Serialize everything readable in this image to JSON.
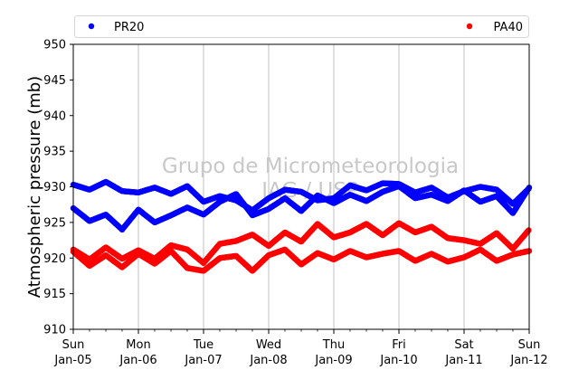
{
  "chart_data": {
    "type": "scatter",
    "title": "",
    "xlabel": "",
    "ylabel": "Atmospheric pressure (mb)",
    "ylim": [
      910,
      950
    ],
    "yticks": [
      910,
      915,
      920,
      925,
      930,
      935,
      940,
      945,
      950
    ],
    "xlim": [
      "Jan-05",
      "Jan-12"
    ],
    "xticks": [
      {
        "day": "Sun",
        "date": "Jan-05"
      },
      {
        "day": "Mon",
        "date": "Jan-06"
      },
      {
        "day": "Tue",
        "date": "Jan-07"
      },
      {
        "day": "Wed",
        "date": "Jan-08"
      },
      {
        "day": "Thu",
        "date": "Jan-09"
      },
      {
        "day": "Fri",
        "date": "Jan-10"
      },
      {
        "day": "Sat",
        "date": "Jan-11"
      },
      {
        "day": "Sun",
        "date": "Jan-12"
      }
    ],
    "grid": "vertical",
    "legend_position": "top",
    "watermark": [
      "Grupo de Micrometeorologia",
      "IAG / USP"
    ],
    "colors": {
      "PR20": "#0000ff",
      "PA40": "#ff0000"
    },
    "series": [
      {
        "name": "PR20",
        "color": "#0000ff",
        "points": [
          [
            0.0,
            930.3
          ],
          [
            0.25,
            929.6
          ],
          [
            0.5,
            930.7
          ],
          [
            0.75,
            929.4
          ],
          [
            1.0,
            929.2
          ],
          [
            1.25,
            929.9
          ],
          [
            1.5,
            929.0
          ],
          [
            1.75,
            930.1
          ],
          [
            2.0,
            927.9
          ],
          [
            2.25,
            928.7
          ],
          [
            2.5,
            928.1
          ],
          [
            2.75,
            926.7
          ],
          [
            3.0,
            928.4
          ],
          [
            3.25,
            929.6
          ],
          [
            3.5,
            929.3
          ],
          [
            3.75,
            928.1
          ],
          [
            4.0,
            928.4
          ],
          [
            4.25,
            930.2
          ],
          [
            4.5,
            929.5
          ],
          [
            4.75,
            930.5
          ],
          [
            5.0,
            930.4
          ],
          [
            5.25,
            929.2
          ],
          [
            5.5,
            929.9
          ],
          [
            5.75,
            928.5
          ],
          [
            6.0,
            929.4
          ],
          [
            6.25,
            930.0
          ],
          [
            6.5,
            929.6
          ],
          [
            6.75,
            927.6
          ],
          [
            7.0,
            929.8
          ],
          [
            0.0,
            927.0
          ],
          [
            0.25,
            925.2
          ],
          [
            0.5,
            926.1
          ],
          [
            0.75,
            924.0
          ],
          [
            1.0,
            926.8
          ],
          [
            1.25,
            925.0
          ],
          [
            1.5,
            926.0
          ],
          [
            1.75,
            927.1
          ],
          [
            2.0,
            926.1
          ],
          [
            2.25,
            927.9
          ],
          [
            2.5,
            929.0
          ],
          [
            2.75,
            926.0
          ],
          [
            3.0,
            926.9
          ],
          [
            3.25,
            928.4
          ],
          [
            3.5,
            926.6
          ],
          [
            3.75,
            928.8
          ],
          [
            4.0,
            927.7
          ],
          [
            4.25,
            928.9
          ],
          [
            4.5,
            928.0
          ],
          [
            4.75,
            929.3
          ],
          [
            5.0,
            930.1
          ],
          [
            5.25,
            928.4
          ],
          [
            5.5,
            928.9
          ],
          [
            5.75,
            928.0
          ],
          [
            6.0,
            929.5
          ],
          [
            6.25,
            927.9
          ],
          [
            6.5,
            928.7
          ],
          [
            6.75,
            926.3
          ],
          [
            7.0,
            929.9
          ]
        ]
      },
      {
        "name": "PA40",
        "color": "#ff0000",
        "points": [
          [
            0.0,
            921.2
          ],
          [
            0.25,
            919.8
          ],
          [
            0.5,
            921.5
          ],
          [
            0.75,
            919.9
          ],
          [
            1.0,
            921.1
          ],
          [
            1.25,
            919.9
          ],
          [
            1.5,
            921.8
          ],
          [
            1.75,
            921.2
          ],
          [
            2.0,
            919.3
          ],
          [
            2.25,
            922.0
          ],
          [
            2.5,
            922.4
          ],
          [
            2.75,
            923.3
          ],
          [
            3.0,
            921.7
          ],
          [
            3.25,
            923.6
          ],
          [
            3.5,
            922.3
          ],
          [
            3.75,
            924.8
          ],
          [
            4.0,
            922.9
          ],
          [
            4.25,
            923.6
          ],
          [
            4.5,
            924.8
          ],
          [
            4.75,
            923.2
          ],
          [
            5.0,
            924.9
          ],
          [
            5.25,
            923.6
          ],
          [
            5.5,
            924.4
          ],
          [
            5.75,
            922.8
          ],
          [
            6.0,
            922.5
          ],
          [
            6.25,
            922.0
          ],
          [
            6.5,
            923.5
          ],
          [
            6.75,
            921.3
          ],
          [
            7.0,
            924.0
          ],
          [
            0.0,
            920.9
          ],
          [
            0.25,
            918.9
          ],
          [
            0.5,
            920.4
          ],
          [
            0.75,
            918.7
          ],
          [
            1.0,
            920.6
          ],
          [
            1.25,
            919.2
          ],
          [
            1.5,
            921.0
          ],
          [
            1.75,
            918.6
          ],
          [
            2.0,
            918.2
          ],
          [
            2.25,
            920.0
          ],
          [
            2.5,
            920.3
          ],
          [
            2.75,
            918.2
          ],
          [
            3.0,
            920.4
          ],
          [
            3.25,
            921.2
          ],
          [
            3.5,
            919.1
          ],
          [
            3.75,
            920.7
          ],
          [
            4.0,
            919.8
          ],
          [
            4.25,
            921.0
          ],
          [
            4.5,
            920.1
          ],
          [
            4.75,
            920.6
          ],
          [
            5.0,
            921.0
          ],
          [
            5.25,
            919.6
          ],
          [
            5.5,
            920.6
          ],
          [
            5.75,
            919.5
          ],
          [
            6.0,
            920.1
          ],
          [
            6.25,
            921.2
          ],
          [
            6.5,
            919.6
          ],
          [
            6.75,
            920.5
          ],
          [
            7.0,
            921.0
          ]
        ]
      }
    ]
  }
}
